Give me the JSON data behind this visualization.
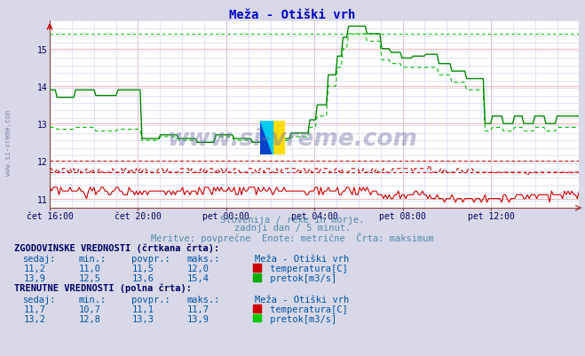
{
  "title": "Meža - Otiški vrh",
  "subtitle1": "Slovenija / reke in morje.",
  "subtitle2": "zadnji dan / 5 minut.",
  "subtitle3": "Meritve: povprečne  Enote: metrične  Črta: maksimum",
  "xlabel_ticks": [
    "čet 16:00",
    "čet 20:00",
    "pet 00:00",
    "pet 04:00",
    "pet 08:00",
    "pet 12:00"
  ],
  "yticks": [
    11,
    12,
    13,
    14,
    15
  ],
  "ymin": 10.75,
  "ymax": 15.75,
  "bg_color": "#d8d8e8",
  "plot_bg": "#ffffff",
  "title_color": "#0000cc",
  "subtitle_color": "#5588aa",
  "text_color": "#0055aa",
  "bold_color": "#000066",
  "temp_color": "#cc0000",
  "flow_color": "#008800",
  "flow_dashed_color": "#00bb00",
  "flow_maks_dotted": 15.4,
  "temp_maks_dotted": 12.0,
  "temp_curr_dotted": 11.7,
  "n_points": 288
}
